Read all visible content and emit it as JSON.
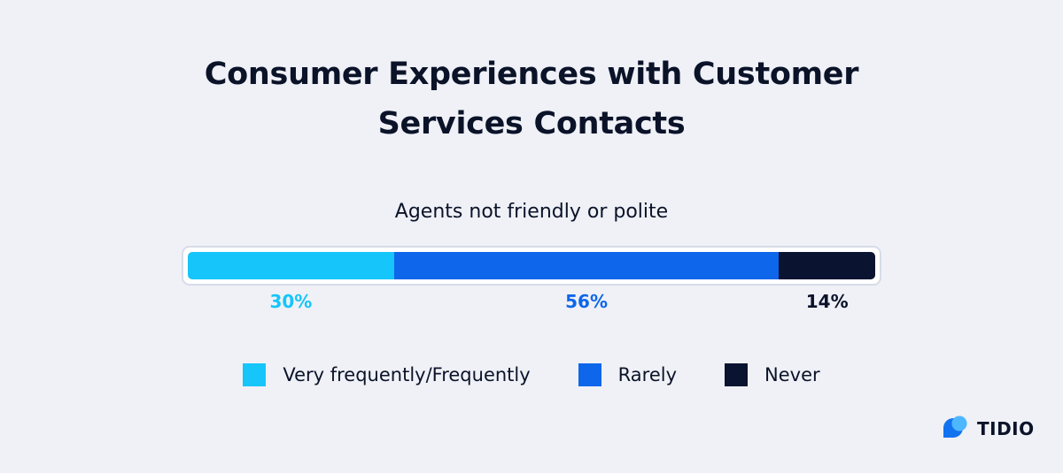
{
  "chart_data": {
    "type": "bar",
    "title_lines": [
      "Consumer Experiences with Customer",
      "Services Contacts"
    ],
    "subtitle": "Agents not friendly or polite",
    "categories": [
      "Agents not friendly or polite"
    ],
    "series": [
      {
        "name": "Very frequently/Frequently",
        "values": [
          30
        ],
        "label": "30%",
        "color": "#16c5fa"
      },
      {
        "name": "Rarely",
        "values": [
          56
        ],
        "label": "56%",
        "color": "#0e66ea"
      },
      {
        "name": "Never",
        "values": [
          14
        ],
        "label": "14%",
        "color": "#0a1330"
      }
    ],
    "stacked": true,
    "unit": "%",
    "legend_position": "bottom",
    "grid": false
  },
  "brand": {
    "name": "TIDIO",
    "icon": "tidio-logo-icon"
  }
}
